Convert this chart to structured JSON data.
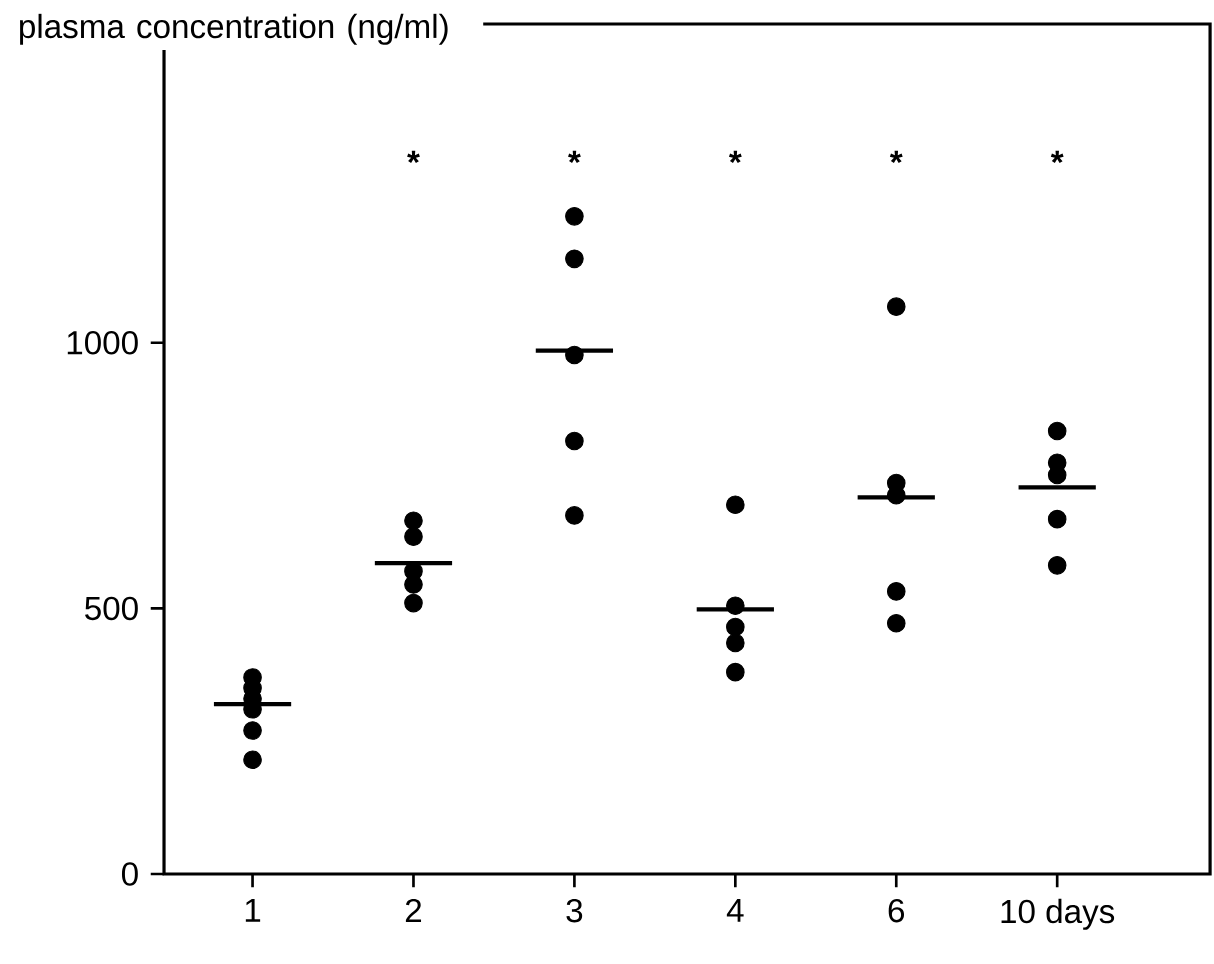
{
  "chart_data": {
    "type": "scatter",
    "ylabel": "plasma concentration (ng/ml)",
    "categories": [
      "1",
      "2",
      "3",
      "4",
      "6",
      "10 days"
    ],
    "series": [
      {
        "marker": "circle",
        "color": "#000000",
        "x": [
          "1",
          "1",
          "1",
          "1",
          "1",
          "1",
          "2",
          "2",
          "2",
          "2",
          "2",
          "3",
          "3",
          "3",
          "3",
          "3",
          "4",
          "4",
          "4",
          "4",
          "4",
          "6",
          "6",
          "6",
          "6",
          "6",
          "10 days",
          "10 days",
          "10 days",
          "10 days",
          "10 days"
        ],
        "values": [
          370,
          350,
          330,
          310,
          270,
          215,
          665,
          635,
          570,
          545,
          510,
          1238,
          1158,
          977,
          815,
          675,
          695,
          505,
          465,
          435,
          380,
          1068,
          736,
          713,
          532,
          472,
          834,
          774,
          751,
          668,
          581
        ]
      },
      {
        "type": "box",
        "color": "#000000",
        "boxes": [
          {
            "low": 320,
            "q1": 320,
            "median": 320,
            "q3": 320,
            "high": 320
          },
          {
            "low": 585,
            "q1": 585,
            "median": 585,
            "q3": 585,
            "high": 585
          },
          {
            "low": 985,
            "q1": 985,
            "median": 985,
            "q3": 985,
            "high": 985
          },
          {
            "low": 498,
            "q1": 498,
            "median": 498,
            "q3": 498,
            "high": 498
          },
          {
            "low": 709,
            "q1": 709,
            "median": 709,
            "q3": 709,
            "high": 709
          },
          {
            "low": 728,
            "q1": 728,
            "median": 728,
            "q3": 728,
            "high": 728
          }
        ]
      }
    ],
    "ylim": [
      0,
      1600
    ],
    "yticks": [
      0,
      500,
      1000
    ],
    "grid": false,
    "annotations": [
      "*",
      "*",
      "*",
      "*",
      "*"
    ]
  }
}
